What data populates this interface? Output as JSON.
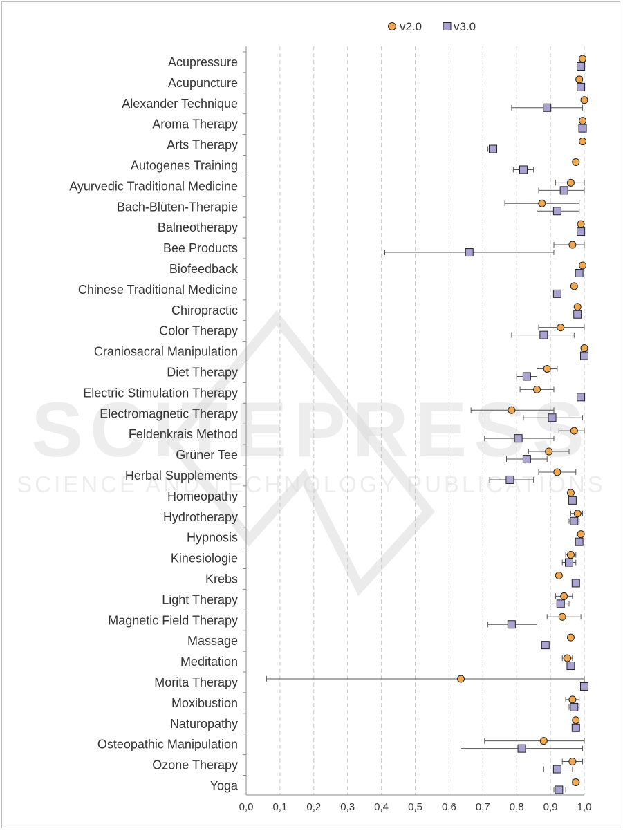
{
  "colors": {
    "v2": "#f0a850",
    "v3": "#a9a3d1",
    "marker_stroke": "#222222",
    "errorbar": "#555555",
    "grid": "#c8c8c8",
    "axis": "#888888",
    "watermark": "#d7d7d7"
  },
  "watermark": {
    "main": "SCITEPRESS",
    "sub": "SCIENCE AND TECHNOLOGY PUBLICATIONS"
  },
  "chart_data": {
    "type": "scatter",
    "orientation": "horizontal",
    "title": "",
    "xlabel": "",
    "ylabel": "",
    "xlim": [
      0,
      1
    ],
    "x_ticks": [
      "0,0",
      "0,1",
      "0,2",
      "0,3",
      "0,4",
      "0,5",
      "0,6",
      "0,7",
      "0,8",
      "0,9",
      "1,0"
    ],
    "grid": "vertical dashed",
    "legend": {
      "position": "top-center",
      "entries": [
        {
          "name": "v2.0",
          "marker": "circle"
        },
        {
          "name": "v3.0",
          "marker": "square"
        }
      ]
    },
    "categories": [
      "Acupressure",
      "Acupuncture",
      "Alexander Technique",
      "Aroma Therapy",
      "Arts Therapy",
      "Autogenes Training",
      "Ayurvedic Traditional Medicine",
      "Bach-Blüten-Therapie",
      "Balneotherapy",
      "Bee Products",
      "Biofeedback",
      "Chinese Traditional Medicine",
      "Chiropractic",
      "Color Therapy",
      "Craniosacral Manipulation",
      "Diet Therapy",
      "Electric Stimulation Therapy",
      "Electromagnetic Therapy",
      "Feldenkrais Method",
      "Grüner Tee",
      "Herbal Supplements",
      "Homeopathy",
      "Hydrotherapy",
      "Hypnosis",
      "Kinesiologie",
      "Krebs",
      "Light Therapy",
      "Magnetic Field Therapy",
      "Massage",
      "Meditation",
      "Morita Therapy",
      "Moxibustion",
      "Naturopathy",
      "Osteopathic Manipulation",
      "Ozone Therapy",
      "Yoga"
    ],
    "series": [
      {
        "name": "v2.0",
        "values": [
          0.995,
          0.985,
          1.0,
          0.995,
          0.995,
          0.975,
          0.96,
          0.875,
          0.99,
          0.965,
          0.995,
          0.97,
          0.98,
          0.93,
          1.0,
          0.89,
          0.86,
          0.785,
          0.97,
          0.895,
          0.92,
          0.96,
          0.98,
          0.99,
          0.96,
          0.925,
          0.94,
          0.935,
          0.96,
          0.95,
          0.635,
          0.965,
          0.975,
          0.88,
          0.965,
          0.975
        ],
        "err_low": [
          null,
          null,
          null,
          null,
          null,
          null,
          0.915,
          0.765,
          null,
          0.91,
          null,
          null,
          null,
          0.865,
          null,
          0.86,
          0.81,
          0.665,
          0.925,
          0.835,
          0.865,
          null,
          0.96,
          null,
          0.945,
          null,
          0.915,
          0.89,
          null,
          0.935,
          0.06,
          0.945,
          null,
          0.705,
          0.935,
          0.965
        ],
        "err_high": [
          null,
          null,
          null,
          null,
          null,
          null,
          1.0,
          0.985,
          null,
          1.0,
          null,
          null,
          null,
          1.0,
          null,
          0.92,
          0.91,
          0.91,
          1.0,
          0.955,
          0.975,
          null,
          0.995,
          null,
          0.975,
          null,
          0.965,
          0.99,
          null,
          0.965,
          1.0,
          0.985,
          null,
          1.0,
          0.995,
          0.985
        ]
      },
      {
        "name": "v3.0",
        "values": [
          0.99,
          0.99,
          0.89,
          0.995,
          0.73,
          0.82,
          0.94,
          0.92,
          0.99,
          0.66,
          0.985,
          0.92,
          0.98,
          0.88,
          1.0,
          0.83,
          0.99,
          0.905,
          0.805,
          0.83,
          0.78,
          0.965,
          0.97,
          0.985,
          0.955,
          0.975,
          0.93,
          0.785,
          0.885,
          0.96,
          1.0,
          0.97,
          0.975,
          0.815,
          0.92,
          0.925
        ],
        "err_low": [
          null,
          null,
          0.785,
          null,
          0.715,
          0.79,
          0.865,
          0.86,
          null,
          0.41,
          null,
          0.91,
          null,
          0.785,
          null,
          0.8,
          null,
          0.82,
          0.705,
          0.77,
          0.72,
          null,
          0.955,
          null,
          0.935,
          null,
          0.905,
          0.715,
          null,
          0.95,
          null,
          0.955,
          null,
          0.635,
          0.88,
          0.91
        ],
        "err_high": [
          null,
          null,
          0.995,
          null,
          0.74,
          0.85,
          1.0,
          0.985,
          null,
          0.91,
          null,
          0.93,
          null,
          0.97,
          null,
          0.86,
          null,
          0.995,
          0.91,
          0.89,
          0.85,
          null,
          0.985,
          null,
          0.975,
          null,
          0.955,
          0.86,
          null,
          0.97,
          null,
          0.985,
          null,
          0.995,
          0.965,
          0.945
        ]
      }
    ]
  }
}
